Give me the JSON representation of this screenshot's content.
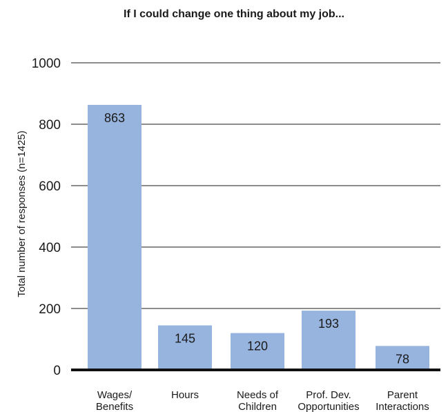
{
  "chart_data": {
    "type": "bar",
    "title": "If I could change one thing about my job...",
    "ylabel": "Total number of responses (n=1425)",
    "xlabel": "",
    "categories": [
      [
        "Wages/",
        "Benefits"
      ],
      [
        "Hours"
      ],
      [
        "Needs of",
        "Children"
      ],
      [
        "Prof. Dev.",
        "Opportunities"
      ],
      [
        "Parent",
        "Interactions"
      ]
    ],
    "values": [
      863,
      145,
      120,
      193,
      78
    ],
    "value_labels": [
      "863",
      "145",
      "120",
      "193",
      "78"
    ],
    "ylim": [
      0,
      1000
    ],
    "yticks": [
      0,
      200,
      400,
      600,
      800,
      1000
    ],
    "ytick_labels": [
      "0",
      "200",
      "400",
      "600",
      "800",
      "1000"
    ],
    "grid": true,
    "legend": "none",
    "colors": {
      "bar": "#97b4de",
      "grid": "#1a1a1a",
      "baseline": "#111111",
      "text": "#1a1a1a"
    }
  }
}
